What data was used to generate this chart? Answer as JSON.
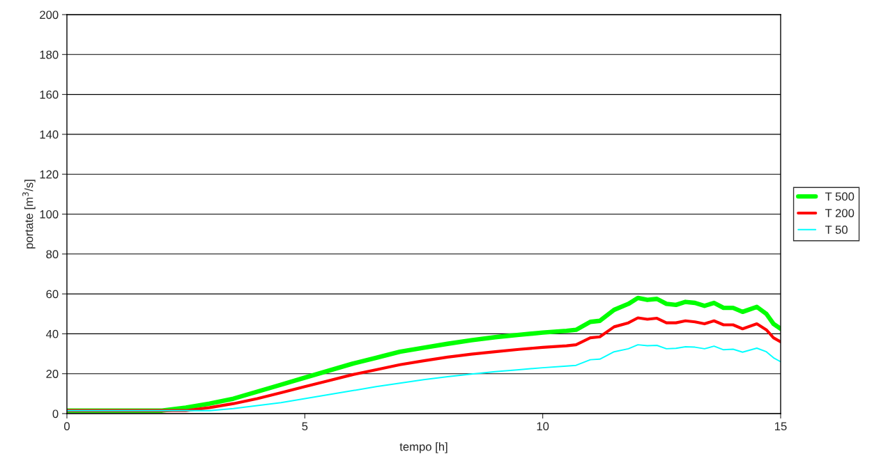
{
  "chart_data": {
    "type": "line",
    "xlabel": "tempo [h]",
    "ylabel": "portate [m$^{3}$/s]",
    "xlim": [
      0,
      15
    ],
    "xticks": [
      0,
      5,
      10,
      15
    ],
    "ylim": [
      0,
      200
    ],
    "yticks": [
      0,
      20,
      40,
      60,
      80,
      100,
      120,
      140,
      160,
      180,
      200
    ],
    "grid": "y",
    "legend": "right",
    "marker": "none",
    "line_style": "solid",
    "series": [
      {
        "name": "T 500",
        "color": "#00ff00",
        "x": [
          0,
          2,
          2.5,
          3,
          3.5,
          4,
          4.5,
          5,
          5.5,
          6,
          6.5,
          7,
          7.5,
          8,
          8.5,
          9,
          9.5,
          10,
          10.5,
          10.7,
          11.0,
          11.2,
          11.5,
          11.8,
          12.0,
          12.2,
          12.4,
          12.6,
          12.8,
          13.0,
          13.2,
          13.4,
          13.6,
          13.8,
          14.0,
          14.2,
          14.5,
          14.7,
          14.85,
          15
        ],
        "values": [
          1.5,
          1.5,
          3,
          5,
          7.5,
          11,
          14.5,
          18,
          21.5,
          25,
          28,
          31,
          33,
          35,
          36.8,
          38.3,
          39.5,
          40.6,
          41.5,
          42,
          46,
          46.5,
          52,
          55,
          58,
          57,
          57.5,
          55,
          54.5,
          56,
          55.5,
          54,
          55.5,
          53,
          53,
          51,
          53.5,
          50,
          45,
          42.5
        ]
      },
      {
        "name": "T 200",
        "color": "#ff0000",
        "x": [
          0,
          2.5,
          3,
          3.5,
          4,
          4.5,
          5,
          5.5,
          6,
          6.5,
          7,
          7.5,
          8,
          8.5,
          9,
          9.5,
          10,
          10.5,
          10.7,
          11.0,
          11.2,
          11.5,
          11.8,
          12.0,
          12.2,
          12.4,
          12.6,
          12.8,
          13.0,
          13.2,
          13.4,
          13.6,
          13.8,
          14.0,
          14.2,
          14.5,
          14.7,
          14.85,
          15
        ],
        "values": [
          1.5,
          1.5,
          3,
          5,
          7.5,
          10.5,
          13.5,
          16.5,
          19.5,
          22,
          24.5,
          26.5,
          28.3,
          29.8,
          31,
          32.2,
          33.2,
          34,
          34.5,
          38,
          38.5,
          43.5,
          45.5,
          48,
          47.3,
          47.8,
          45.5,
          45.5,
          46.5,
          46,
          45,
          46.5,
          44.5,
          44.5,
          42.5,
          45,
          42,
          38,
          36
        ]
      },
      {
        "name": "T 50",
        "color": "#00ffff",
        "x": [
          0,
          3.0,
          3.5,
          4,
          4.5,
          5,
          5.5,
          6,
          6.5,
          7,
          7.5,
          8,
          8.5,
          9,
          9.5,
          10,
          10.5,
          10.7,
          11.0,
          11.2,
          11.5,
          11.8,
          12.0,
          12.2,
          12.4,
          12.6,
          12.8,
          13.0,
          13.2,
          13.4,
          13.6,
          13.8,
          14.0,
          14.2,
          14.5,
          14.7,
          14.85,
          15
        ],
        "values": [
          1.5,
          1.5,
          2.5,
          4,
          5.5,
          7.5,
          9.5,
          11.5,
          13.5,
          15.3,
          17,
          18.5,
          19.8,
          21,
          22,
          23,
          23.8,
          24.2,
          27,
          27.3,
          31,
          32.5,
          34.5,
          34,
          34.2,
          32.5,
          32.7,
          33.5,
          33.3,
          32.5,
          33.8,
          32,
          32.3,
          30.8,
          32.8,
          31,
          28,
          26
        ]
      }
    ]
  }
}
